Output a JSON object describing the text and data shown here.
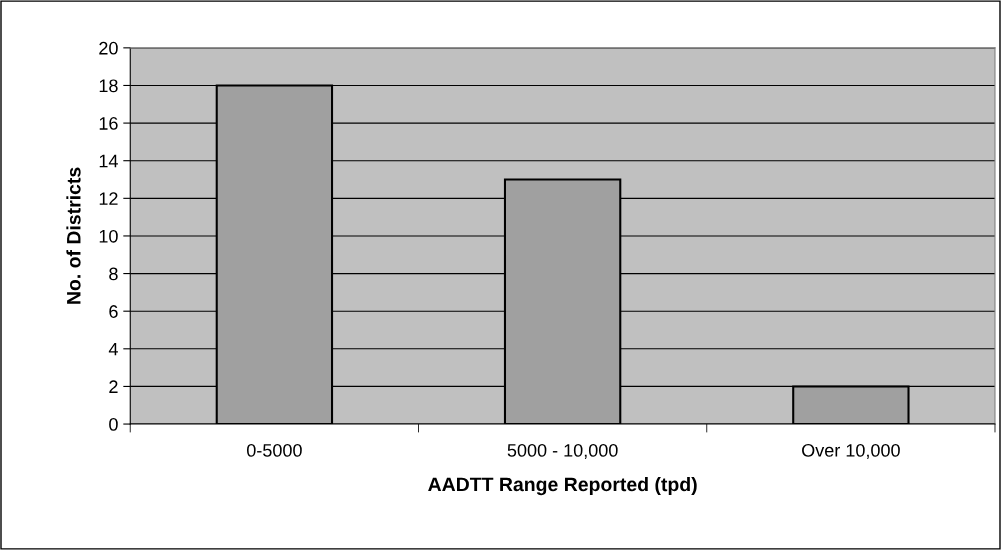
{
  "chart_data": {
    "type": "bar",
    "xlabel": "AADTT Range Reported (tpd)",
    "ylabel": "No. of Districts",
    "categories": [
      "0-5000",
      "5000 - 10,000",
      "Over 10,000"
    ],
    "values": [
      18,
      13,
      2
    ],
    "color": "#a0a0a0",
    "ylim": [
      0,
      20
    ],
    "yticks": [
      0,
      2,
      4,
      6,
      8,
      10,
      12,
      14,
      16,
      18,
      20
    ],
    "grid": "y"
  }
}
